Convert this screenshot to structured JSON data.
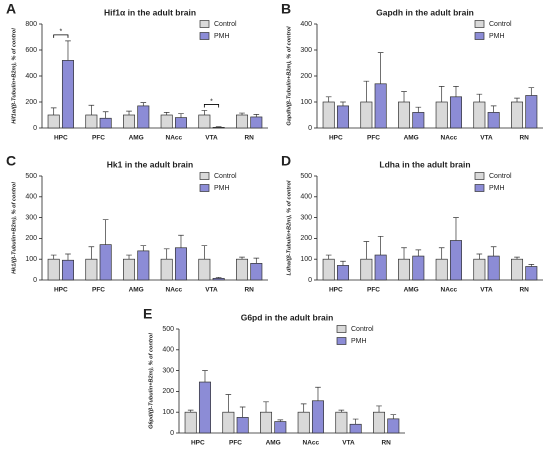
{
  "chart_data": [
    {
      "type": "bar",
      "label": "A",
      "title": "Hif1α in the adult brain",
      "ylabel": "Hif1α/(β-Tubulin+B2m), % of control",
      "categories": [
        "HPC",
        "PFC",
        "AMG",
        "NAcc",
        "VTA",
        "RN"
      ],
      "series": [
        {
          "name": "Control",
          "color": "#d9d9d9",
          "values": [
            100,
            100,
            100,
            100,
            100,
            100
          ],
          "errors": [
            55,
            75,
            30,
            20,
            35,
            15
          ]
        },
        {
          "name": "PMH",
          "color": "#8c8cd6",
          "values": [
            520,
            75,
            170,
            80,
            5,
            85
          ],
          "errors": [
            150,
            50,
            25,
            30,
            5,
            20
          ]
        }
      ],
      "significance": [
        "*",
        null,
        null,
        null,
        "*",
        null
      ],
      "ylim": [
        0,
        800
      ],
      "yticks": [
        0,
        200,
        400,
        600,
        800
      ],
      "legend": "top-right"
    },
    {
      "type": "bar",
      "label": "B",
      "title": "Gapdh in the adult brain",
      "ylabel": "Gapdh/(β-Tubulin+B2m), % of control",
      "categories": [
        "HPC",
        "PFC",
        "AMG",
        "NAcc",
        "VTA",
        "RN"
      ],
      "series": [
        {
          "name": "Control",
          "color": "#d9d9d9",
          "values": [
            100,
            100,
            100,
            100,
            100,
            100
          ],
          "errors": [
            20,
            80,
            40,
            60,
            30,
            15
          ]
        },
        {
          "name": "PMH",
          "color": "#8c8cd6",
          "values": [
            85,
            170,
            60,
            120,
            60,
            125
          ],
          "errors": [
            15,
            120,
            20,
            40,
            25,
            30
          ]
        }
      ],
      "ylim": [
        0,
        400
      ],
      "yticks": [
        0,
        100,
        200,
        300,
        400
      ],
      "legend": "top-right"
    },
    {
      "type": "bar",
      "label": "C",
      "title": "Hk1 in the adult brain",
      "ylabel": "Hk1/(β-Tubulin+B2m), % of control",
      "categories": [
        "HPC",
        "PFC",
        "AMG",
        "NAcc",
        "VTA",
        "RN"
      ],
      "series": [
        {
          "name": "Control",
          "color": "#d9d9d9",
          "values": [
            100,
            100,
            100,
            100,
            100,
            100
          ],
          "errors": [
            20,
            60,
            20,
            50,
            65,
            10
          ]
        },
        {
          "name": "PMH",
          "color": "#8c8cd6",
          "values": [
            95,
            170,
            140,
            155,
            8,
            80
          ],
          "errors": [
            30,
            120,
            25,
            60,
            5,
            25
          ]
        }
      ],
      "ylim": [
        0,
        500
      ],
      "yticks": [
        0,
        100,
        200,
        300,
        400,
        500
      ],
      "legend": "top-right"
    },
    {
      "type": "bar",
      "label": "D",
      "title": "Ldha in the adult brain",
      "ylabel": "Ldha/(β-Tubulin+B2m), % of control",
      "categories": [
        "HPC",
        "PFC",
        "AMG",
        "NAcc",
        "VTA",
        "RN"
      ],
      "series": [
        {
          "name": "Control",
          "color": "#d9d9d9",
          "values": [
            100,
            100,
            100,
            100,
            100,
            100
          ],
          "errors": [
            20,
            85,
            55,
            55,
            25,
            10
          ]
        },
        {
          "name": "PMH",
          "color": "#8c8cd6",
          "values": [
            70,
            120,
            115,
            190,
            115,
            65
          ],
          "errors": [
            20,
            90,
            30,
            110,
            45,
            10
          ]
        }
      ],
      "ylim": [
        0,
        500
      ],
      "yticks": [
        0,
        100,
        200,
        300,
        400,
        500
      ],
      "legend": "top-right"
    },
    {
      "type": "bar",
      "label": "E",
      "title": "G6pd in the adult brain",
      "ylabel": "G6pd/(β-Tubulin+B2m), % of control",
      "categories": [
        "HPC",
        "PFC",
        "AMG",
        "NAcc",
        "VTA",
        "RN"
      ],
      "series": [
        {
          "name": "Control",
          "color": "#d9d9d9",
          "values": [
            100,
            100,
            100,
            100,
            100,
            100
          ],
          "errors": [
            10,
            85,
            50,
            40,
            10,
            30
          ]
        },
        {
          "name": "PMH",
          "color": "#8c8cd6",
          "values": [
            245,
            75,
            55,
            155,
            42,
            68
          ],
          "errors": [
            55,
            50,
            8,
            65,
            25,
            20
          ]
        }
      ],
      "ylim": [
        0,
        500
      ],
      "yticks": [
        0,
        100,
        200,
        300,
        400,
        500
      ],
      "legend": "top-right"
    }
  ]
}
